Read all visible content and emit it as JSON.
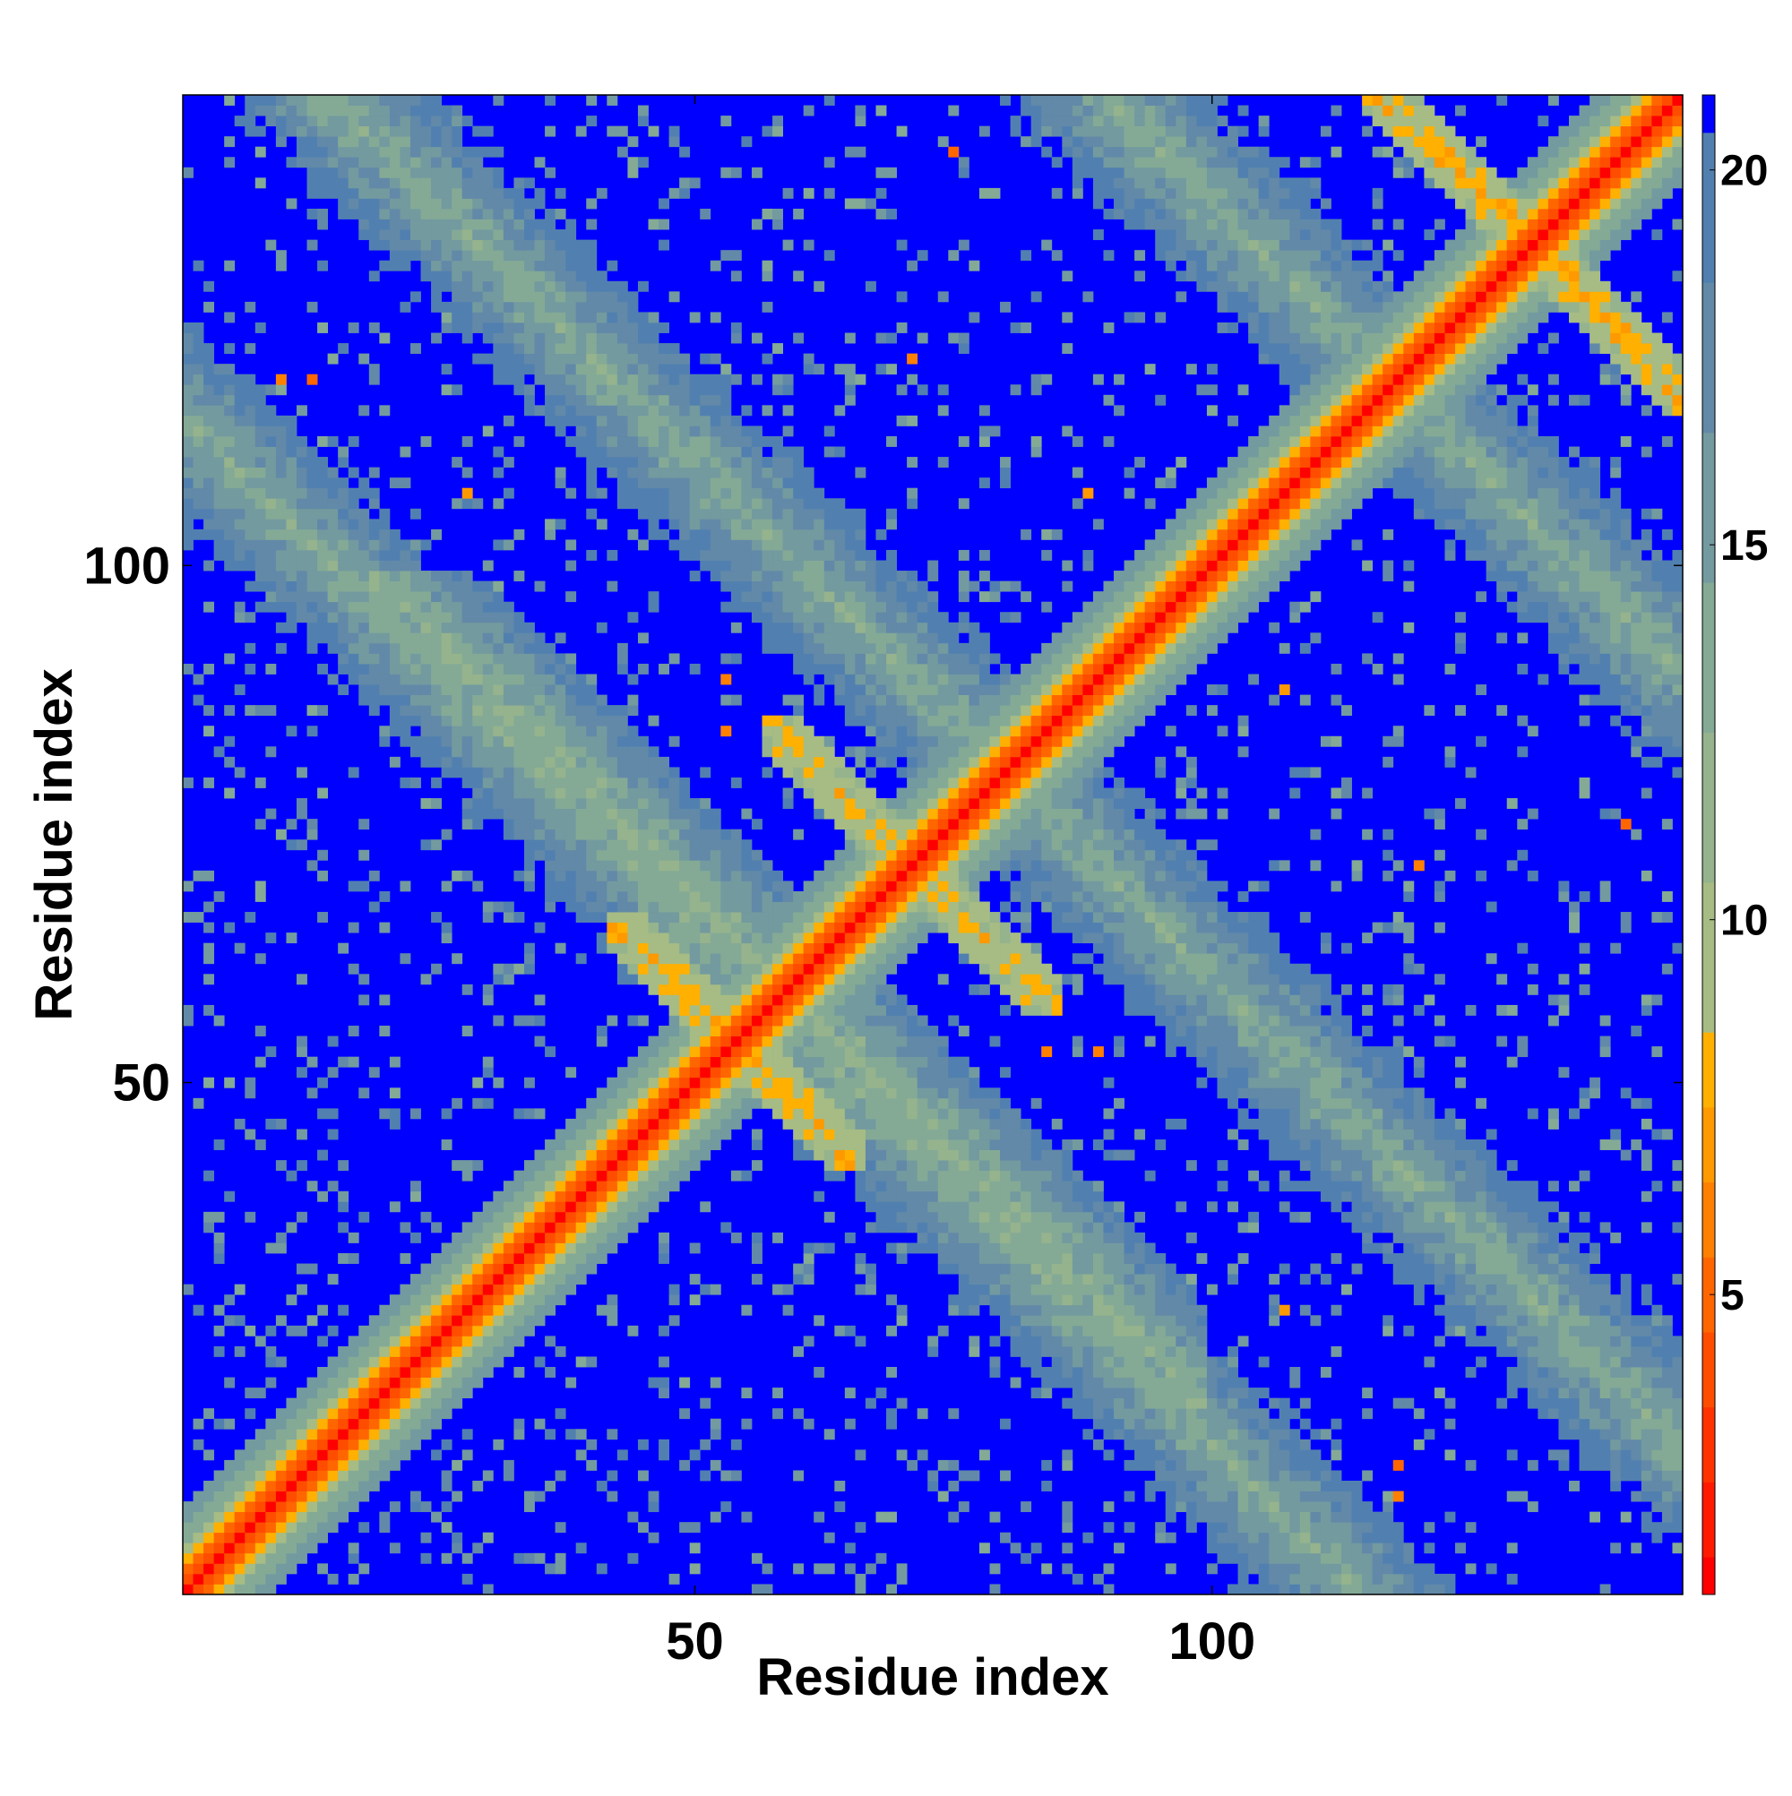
{
  "chart_data": {
    "type": "heatmap",
    "title": "",
    "xlabel": "Residue index",
    "ylabel": "Residue index",
    "n_residues": 145,
    "xlim": [
      1,
      145
    ],
    "ylim": [
      1,
      145
    ],
    "x_ticks": [
      50,
      100
    ],
    "x_tick_labels": [
      "50",
      "100"
    ],
    "y_ticks": [
      50,
      100
    ],
    "y_tick_labels": [
      "50",
      "100"
    ],
    "colorbar": {
      "range": [
        1,
        21
      ],
      "ticks": [
        5,
        10,
        15,
        20
      ],
      "tick_labels": [
        "5",
        "10",
        "15",
        "20"
      ],
      "levels": [
        {
          "max": 1.5,
          "color": "#ff0000"
        },
        {
          "max": 2.5,
          "color": "#ff1a00"
        },
        {
          "max": 3.5,
          "color": "#ff3300"
        },
        {
          "max": 4.5,
          "color": "#ff4d00"
        },
        {
          "max": 5.5,
          "color": "#ff6600"
        },
        {
          "max": 6.5,
          "color": "#ff8000"
        },
        {
          "max": 7.5,
          "color": "#ff9900"
        },
        {
          "max": 8.5,
          "color": "#ffb000"
        },
        {
          "max": 10.5,
          "color": "#a6bc84"
        },
        {
          "max": 12.5,
          "color": "#95b38d"
        },
        {
          "max": 14.5,
          "color": "#84aa96"
        },
        {
          "max": 16.5,
          "color": "#739a9f"
        },
        {
          "max": 18.5,
          "color": "#6289a8"
        },
        {
          "max": 20.5,
          "color": "#5180b0"
        },
        {
          "max": 99,
          "color": "#0000ff"
        }
      ]
    },
    "background_color": "#0000ff",
    "diagonal_value": 1.0,
    "description_of_cells": "Symmetric residue-residue distance map (Angstrom); values above 20 shown as saturated blue.",
    "contact_segments": [
      {
        "i": [
          1,
          145
        ],
        "j_offset": 0,
        "value_near": 1,
        "width": 7
      },
      {
        "i": [
          45,
          60
        ],
        "anti": 108,
        "value": 6.5,
        "width": 3
      },
      {
        "i": [
          62,
          82
        ],
        "anti": 142,
        "value": 7,
        "width": 3
      },
      {
        "i": [
          118,
          140
        ],
        "anti": 262,
        "value": 6.5,
        "width": 3
      },
      {
        "i": [
          22,
          45
        ],
        "anti": 118,
        "value": 11,
        "width": 10
      },
      {
        "i": [
          10,
          45
        ],
        "anti": 160,
        "value": 12,
        "width": 14
      },
      {
        "i": [
          85,
          130
        ],
        "anti": 115,
        "value": 12,
        "width": 14
      },
      {
        "i": [
          60,
          95
        ],
        "anti": 235,
        "value": 12,
        "width": 12
      }
    ],
    "hotspots": [
      {
        "i": 10,
        "j": 118,
        "value": 6
      },
      {
        "i": 28,
        "j": 107,
        "value": 7
      },
      {
        "i": 53,
        "j": 89,
        "value": 6
      },
      {
        "i": 84,
        "j": 53,
        "value": 6
      },
      {
        "i": 88,
        "j": 107,
        "value": 7
      },
      {
        "i": 118,
        "j": 10,
        "value": 6
      },
      {
        "i": 107,
        "j": 28,
        "value": 7
      },
      {
        "i": 118,
        "j": 13,
        "value": 5
      },
      {
        "i": 75,
        "j": 140,
        "value": 5
      },
      {
        "i": 71,
        "j": 120,
        "value": 6
      }
    ]
  }
}
